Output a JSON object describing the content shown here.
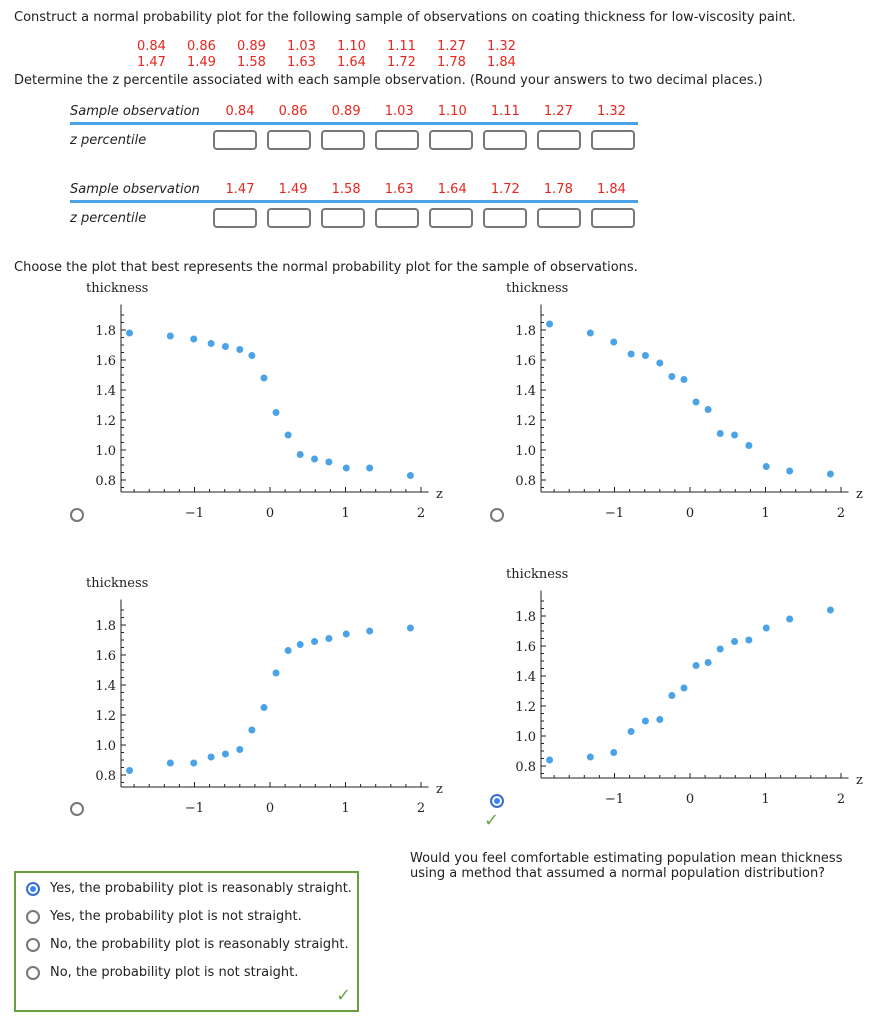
{
  "question": {
    "intro": "Construct a normal probability plot for the following sample of observations on coating thickness for low-viscosity paint.",
    "sample_row1": [
      "0.84",
      "0.86",
      "0.89",
      "1.03",
      "1.10",
      "1.11",
      "1.27",
      "1.32"
    ],
    "sample_row2": [
      "1.47",
      "1.49",
      "1.58",
      "1.63",
      "1.64",
      "1.72",
      "1.78",
      "1.84"
    ],
    "instruction": "Determine the z percentile associated with each sample observation. (Round your answers to two decimal places.)",
    "table_obs_label": "Sample observation",
    "table_z_label": "z percentile",
    "plot_prompt": "Choose the plot that best represents the normal probability plot for the sample of observations.",
    "followup": "Would you feel comfortable estimating population mean thickness using a method that assumed a normal population distribution?",
    "options": [
      {
        "label": "Yes, the probability plot is reasonably straight.",
        "selected": true
      },
      {
        "label": "Yes, the probability plot is not straight.",
        "selected": false
      },
      {
        "label": "No, the probability plot is reasonably straight.",
        "selected": false
      },
      {
        "label": "No, the probability plot is not straight.",
        "selected": false
      }
    ],
    "selected_plot": 4,
    "correct_color": "#6aa84f",
    "accent_color": "#4aa3e6"
  },
  "chart_data": [
    {
      "type": "scatter",
      "ylabel": "thickness",
      "xlabel": "z",
      "xticks": [
        "−1",
        "0",
        "1",
        "2"
      ],
      "yticks": [
        "0.8",
        "1.0",
        "1.2",
        "1.4",
        "1.6",
        "1.8"
      ],
      "xlim": [
        -2,
        2.1
      ],
      "ylim": [
        0.72,
        1.97
      ],
      "x": [
        -1.86,
        -1.32,
        -1.01,
        -0.78,
        -0.59,
        -0.4,
        -0.24,
        -0.08,
        0.08,
        0.24,
        0.4,
        0.59,
        0.78,
        1.01,
        1.32,
        1.86
      ],
      "y": [
        1.78,
        1.76,
        1.74,
        1.71,
        1.69,
        1.67,
        1.63,
        1.48,
        1.25,
        1.1,
        0.97,
        0.94,
        0.92,
        0.88,
        0.88,
        0.83
      ],
      "color": "#4aa3e6"
    },
    {
      "type": "scatter",
      "ylabel": "thickness",
      "xlabel": "z",
      "xticks": [
        "−1",
        "0",
        "1",
        "2"
      ],
      "yticks": [
        "0.8",
        "1.0",
        "1.2",
        "1.4",
        "1.6",
        "1.8"
      ],
      "xlim": [
        -2,
        2.1
      ],
      "ylim": [
        0.72,
        1.97
      ],
      "x": [
        -1.86,
        -1.32,
        -1.01,
        -0.78,
        -0.59,
        -0.4,
        -0.24,
        -0.08,
        0.08,
        0.24,
        0.4,
        0.59,
        0.78,
        1.01,
        1.32,
        1.86
      ],
      "y": [
        1.84,
        1.78,
        1.72,
        1.64,
        1.63,
        1.58,
        1.49,
        1.47,
        1.32,
        1.27,
        1.11,
        1.1,
        1.03,
        0.89,
        0.86,
        0.84
      ],
      "color": "#4aa3e6"
    },
    {
      "type": "scatter",
      "ylabel": "thickness",
      "xlabel": "z",
      "xticks": [
        "−1",
        "0",
        "1",
        "2"
      ],
      "yticks": [
        "0.8",
        "1.0",
        "1.2",
        "1.4",
        "1.6",
        "1.8"
      ],
      "xlim": [
        -2,
        2.1
      ],
      "ylim": [
        0.72,
        1.97
      ],
      "x": [
        -1.86,
        -1.32,
        -1.01,
        -0.78,
        -0.59,
        -0.4,
        -0.24,
        -0.08,
        0.08,
        0.24,
        0.4,
        0.59,
        0.78,
        1.01,
        1.32,
        1.86
      ],
      "y": [
        0.83,
        0.88,
        0.88,
        0.92,
        0.94,
        0.97,
        1.1,
        1.25,
        1.48,
        1.63,
        1.67,
        1.69,
        1.71,
        1.74,
        1.76,
        1.78
      ],
      "color": "#4aa3e6"
    },
    {
      "type": "scatter",
      "ylabel": "thickness",
      "xlabel": "z",
      "xticks": [
        "−1",
        "0",
        "1",
        "2"
      ],
      "yticks": [
        "0.8",
        "1.0",
        "1.2",
        "1.4",
        "1.6",
        "1.8"
      ],
      "xlim": [
        -2,
        2.1
      ],
      "ylim": [
        0.72,
        1.97
      ],
      "x": [
        -1.86,
        -1.32,
        -1.01,
        -0.78,
        -0.59,
        -0.4,
        -0.24,
        -0.08,
        0.08,
        0.24,
        0.4,
        0.59,
        0.78,
        1.01,
        1.32,
        1.86
      ],
      "y": [
        0.84,
        0.86,
        0.89,
        1.03,
        1.1,
        1.11,
        1.27,
        1.32,
        1.47,
        1.49,
        1.58,
        1.63,
        1.64,
        1.72,
        1.78,
        1.84
      ],
      "color": "#4aa3e6"
    }
  ]
}
